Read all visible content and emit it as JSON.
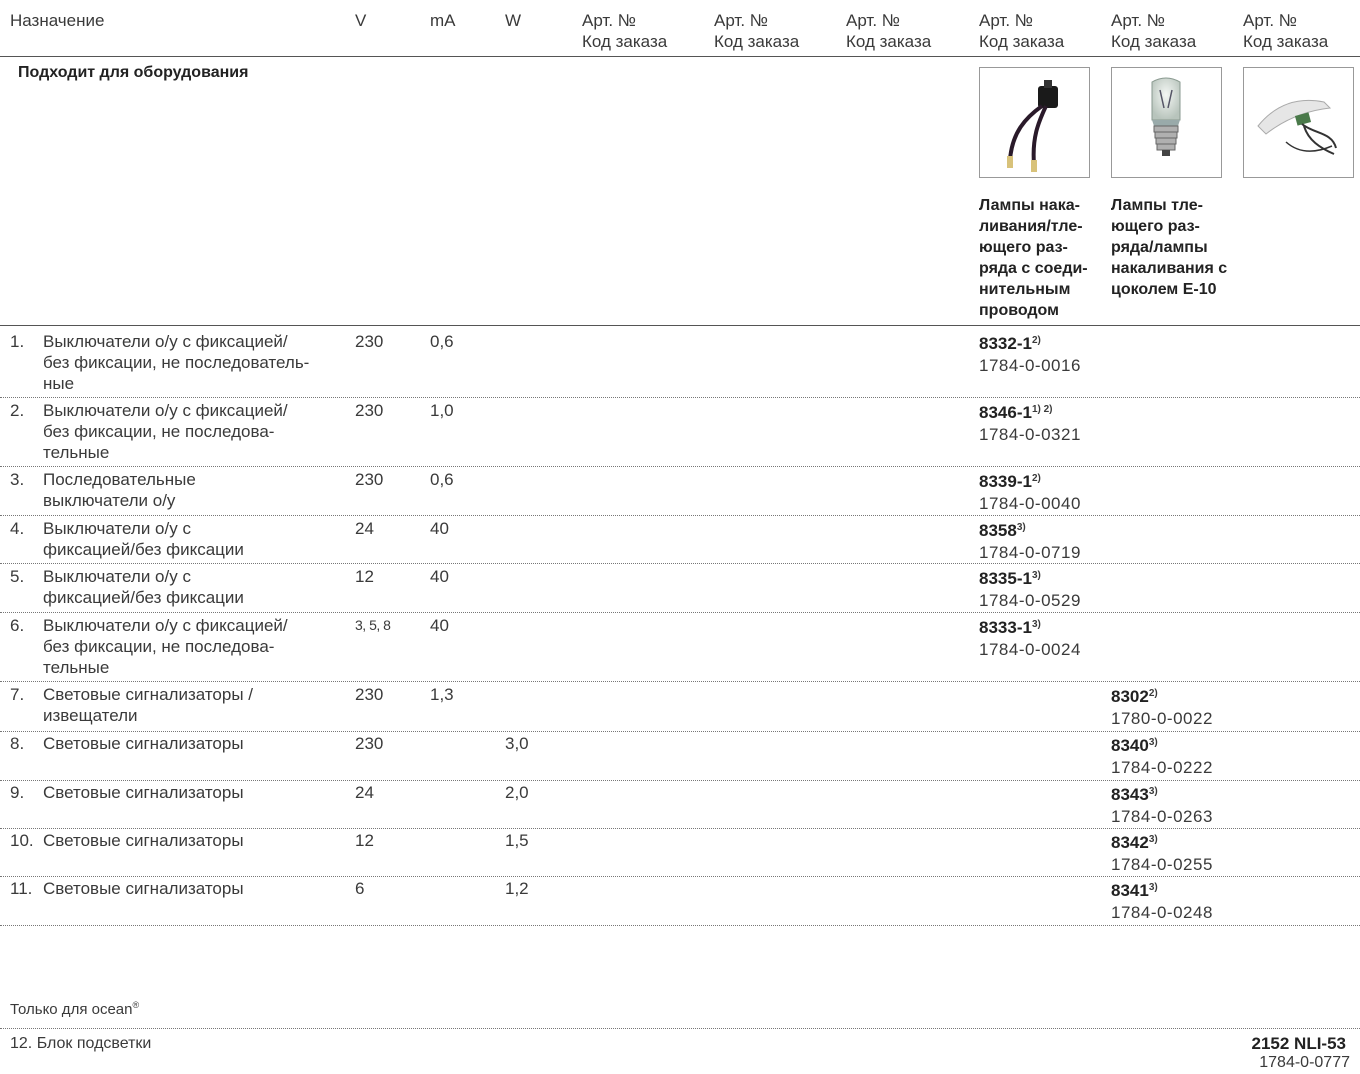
{
  "header": {
    "col_purpose": "Назначение",
    "col_v": "V",
    "col_ma": "mA",
    "col_w": "W",
    "art_label": "Арт. №",
    "order_label": "Код заказа"
  },
  "subtitle": "Подходит для оборудования",
  "products": [
    {
      "icon": "wired-glow-lamp-image",
      "caption": [
        "Лампы нака-",
        "ливания/тле-",
        "ющего раз-",
        "ряда с соеди-",
        "нительным",
        "проводом"
      ]
    },
    {
      "icon": "e10-bulb-image",
      "caption": [
        "Лампы тле-",
        "ющего раз-",
        "ряда/лампы",
        "накаливания с",
        "цоколем Е-10"
      ]
    },
    {
      "icon": "wired-lamp-holder-image",
      "caption": []
    }
  ],
  "rows": [
    {
      "num": "1.",
      "desc": [
        "Выключатели о/у с фиксацией/",
        "без фиксации, не последователь-",
        "ные"
      ],
      "v": "230",
      "ma": "0,6",
      "w": "",
      "col": 0,
      "art": "8332-1",
      "sup": "2)",
      "order": "1784-0-0016"
    },
    {
      "num": "2.",
      "desc": [
        "Выключатели о/у с фиксацией/",
        "без фиксации, не последова-",
        "тельные"
      ],
      "v": "230",
      "ma": "1,0",
      "w": "",
      "col": 0,
      "art": "8346-1",
      "sup": "1) 2)",
      "order": "1784-0-0321"
    },
    {
      "num": "3.",
      "desc": [
        "Последовательные",
        "выключатели о/у"
      ],
      "v": "230",
      "ma": "0,6",
      "w": "",
      "col": 0,
      "art": "8339-1",
      "sup": "2)",
      "order": "1784-0-0040"
    },
    {
      "num": "4.",
      "desc": [
        "Выключатели о/у с",
        "фиксацией/без фиксации"
      ],
      "v": "24",
      "ma": "40",
      "w": "",
      "col": 0,
      "art": "8358",
      "sup": "3)",
      "order": "1784-0-0719"
    },
    {
      "num": "5.",
      "desc": [
        "Выключатели о/у с",
        "фиксацией/без фиксации"
      ],
      "v": "12",
      "ma": "40",
      "w": "",
      "col": 0,
      "art": "8335-1",
      "sup": "3)",
      "order": "1784-0-0529"
    },
    {
      "num": "6.",
      "desc": [
        "Выключатели о/у с фиксацией/",
        "без фиксации, не последова-",
        "тельные"
      ],
      "v": "3, 5, 8",
      "ma": "40",
      "w": "",
      "col": 0,
      "art": "8333-1",
      "sup": "3)",
      "order": "1784-0-0024"
    },
    {
      "num": "7.",
      "desc": [
        "Световые сигнализаторы /",
        "извещатели"
      ],
      "v": "230",
      "ma": "1,3",
      "w": "",
      "col": 1,
      "art": "8302",
      "sup": "2)",
      "order": "1780-0-0022"
    },
    {
      "num": "8.",
      "desc": [
        "Световые сигнализаторы"
      ],
      "v": "230",
      "ma": "",
      "w": "3,0",
      "col": 1,
      "art": "8340",
      "sup": "3)",
      "order": "1784-0-0222"
    },
    {
      "num": "9.",
      "desc": [
        "Световые сигнализаторы"
      ],
      "v": "24",
      "ma": "",
      "w": "2,0",
      "col": 1,
      "art": "8343",
      "sup": "3)",
      "order": "1784-0-0263"
    },
    {
      "num": "10.",
      "desc": [
        "Световые сигнализаторы"
      ],
      "v": "12",
      "ma": "",
      "w": "1,5",
      "col": 1,
      "art": "8342",
      "sup": "3)",
      "order": "1784-0-0255"
    },
    {
      "num": "11.",
      "desc": [
        "Световые сигнализаторы"
      ],
      "v": "6",
      "ma": "",
      "w": "1,2",
      "col": 1,
      "art": "8341",
      "sup": "3)",
      "order": "1784-0-0248"
    }
  ],
  "ocean": {
    "label": "Только для ocean",
    "mark": "®",
    "row_label": "12. Блок подсветки",
    "art": "2152 NLI-53",
    "order": "1784-0-0777"
  }
}
